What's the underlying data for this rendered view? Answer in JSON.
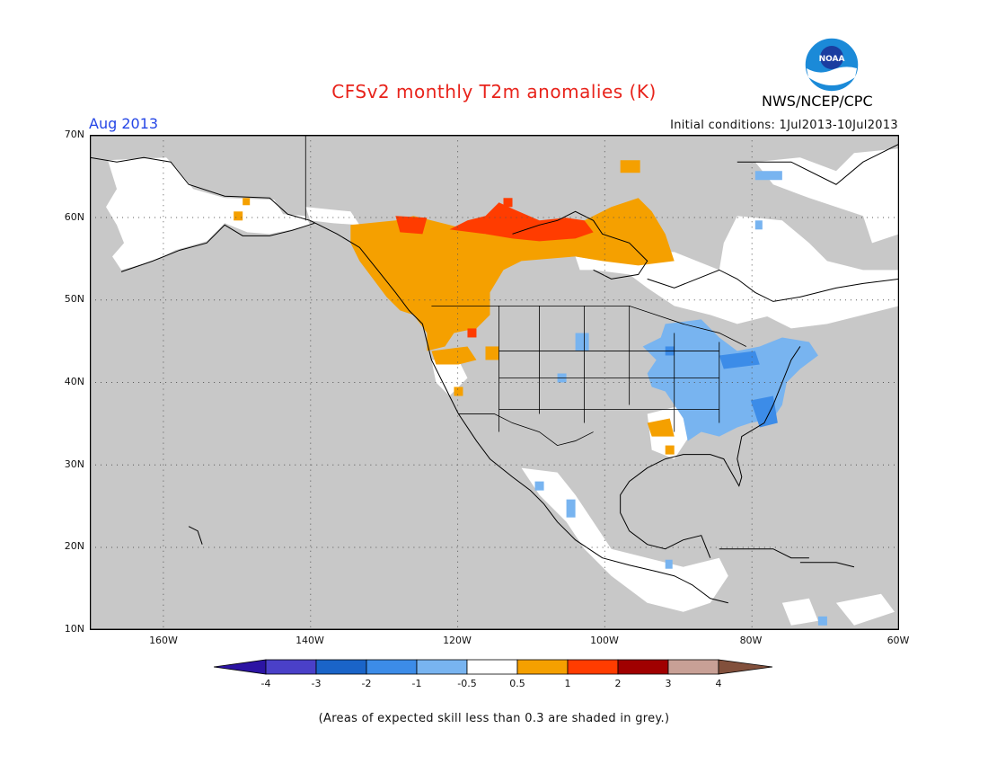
{
  "title": "CFSv2 monthly T2m anomalies (K)",
  "agency": "NWS/NCEP/CPC",
  "valid_month": "Aug 2013",
  "initial_conditions": "Initial conditions: 1Jul2013-10Jul2013",
  "footnote": "(Areas of expected skill less than 0.3 are shaded in grey.)",
  "map": {
    "region": "North America",
    "lon_range": [
      -170,
      -60
    ],
    "lat_range": [
      10,
      70
    ],
    "lat_ticks": [
      "70N",
      "60N",
      "50N",
      "40N",
      "30N",
      "20N",
      "10N"
    ],
    "lon_ticks": [
      "160W",
      "140W",
      "120W",
      "100W",
      "80W",
      "60W"
    ],
    "gridlines": "dotted",
    "background_low_skill_color": "#c8c8c8"
  },
  "colorbar": {
    "labels": [
      "-4",
      "-3",
      "-2",
      "-1",
      "-0.5",
      "0.5",
      "1",
      "2",
      "3",
      "4"
    ],
    "colors": [
      "#2c14a3",
      "#4a40c8",
      "#1a64c8",
      "#3c8ce8",
      "#78b4f0",
      "#ffffff",
      "#f5a000",
      "#ff3c00",
      "#a00000",
      "#c8a096",
      "#82503c"
    ]
  },
  "anomaly_regions": [
    {
      "area": "Western Canada / Pacific Northwest",
      "category": "0.5 to 1",
      "color": "#f5a000"
    },
    {
      "area": "Northern Canada (Nunavut / Northwest Territories)",
      "category": "1 to 2",
      "color": "#ff3c00"
    },
    {
      "area": "Eastern United States",
      "category": "-1 to -0.5",
      "color": "#78b4f0"
    },
    {
      "area": "Alaska, Greenland, Quebec, Mexico",
      "category": "-0.5 to 0.5",
      "color": "#ffffff"
    }
  ]
}
